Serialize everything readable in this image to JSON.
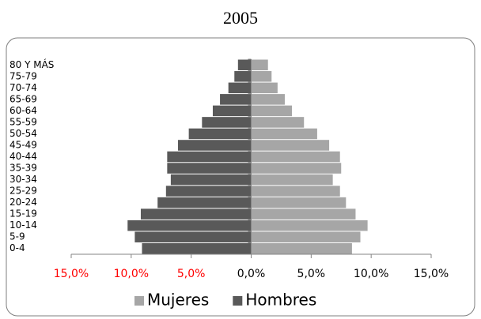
{
  "chart_data": {
    "type": "pyramid",
    "title": "2005",
    "categories": [
      "0-4",
      "5-9",
      "10-14",
      "15-19",
      "20-24",
      "25-29",
      "30-34",
      "35-39",
      "40-44",
      "45-49",
      "50-54",
      "55-59",
      "60-64",
      "65-69",
      "70-74",
      "75-79",
      "80 Y MÁS"
    ],
    "series": [
      {
        "name": "Mujeres",
        "color": "#a6a6a6",
        "values": [
          8.4,
          9.1,
          9.7,
          8.7,
          7.9,
          7.4,
          6.8,
          7.5,
          7.4,
          6.5,
          5.5,
          4.4,
          3.4,
          2.8,
          2.2,
          1.7,
          1.4
        ]
      },
      {
        "name": "Hombres",
        "color": "#595959",
        "values": [
          -9.1,
          -9.7,
          -10.3,
          -9.2,
          -7.8,
          -7.1,
          -6.7,
          -7.0,
          -7.0,
          -6.1,
          -5.2,
          -4.1,
          -3.2,
          -2.6,
          -1.9,
          -1.4,
          -1.1
        ]
      }
    ],
    "xlim": [
      -15,
      15
    ],
    "xticks": [
      {
        "value": -15,
        "label": "15,0%"
      },
      {
        "value": -10,
        "label": "10,0%"
      },
      {
        "value": -5,
        "label": "5,0%"
      },
      {
        "value": 0,
        "label": "0,0%"
      },
      {
        "value": 5,
        "label": "5,0%"
      },
      {
        "value": 10,
        "label": "10,0%"
      },
      {
        "value": 15,
        "label": "15,0%"
      }
    ],
    "negative_tick_color": "#ff0000",
    "legend": "bottom"
  }
}
